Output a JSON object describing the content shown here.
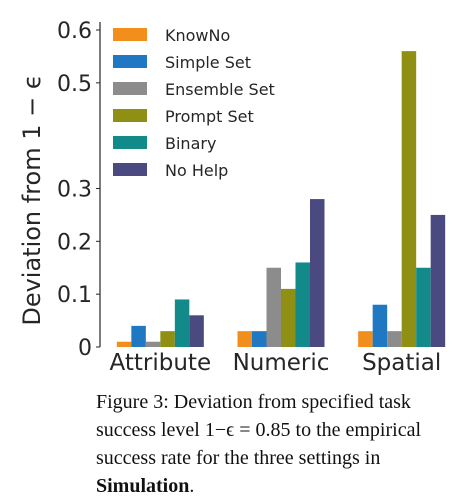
{
  "chart_data": {
    "type": "bar",
    "ylabel": "Deviation from 1 − ϵ",
    "ylim": [
      0,
      0.6
    ],
    "yticks": [
      "0",
      "0.1",
      "0.2",
      "0.3",
      "0.5",
      "0.6"
    ],
    "categories": [
      "Attribute",
      "Numeric",
      "Spatial"
    ],
    "legend_position": "top-left",
    "grid": false,
    "series": [
      {
        "name": "KnowNo",
        "color": "#f28e1c",
        "values": [
          0.01,
          0.03,
          0.03
        ]
      },
      {
        "name": "Simple Set",
        "color": "#1f78c1",
        "values": [
          0.04,
          0.03,
          0.08
        ]
      },
      {
        "name": "Ensemble Set",
        "color": "#8c8c8c",
        "values": [
          0.01,
          0.15,
          0.03
        ]
      },
      {
        "name": "Prompt Set",
        "color": "#8f8f14",
        "values": [
          0.03,
          0.11,
          0.56
        ]
      },
      {
        "name": "Binary",
        "color": "#138a8a",
        "values": [
          0.09,
          0.16,
          0.15
        ]
      },
      {
        "name": "No Help",
        "color": "#4b4a80",
        "values": [
          0.06,
          0.28,
          0.25
        ]
      }
    ]
  },
  "caption": {
    "label": "Figure 3:",
    "line1": "Deviation from specified task success",
    "line2": "level 1−ϵ = 0.85 to the empirical success rate",
    "line3_pre": "for the three settings in ",
    "line3_em": "Simulation",
    "line3_post": "."
  }
}
